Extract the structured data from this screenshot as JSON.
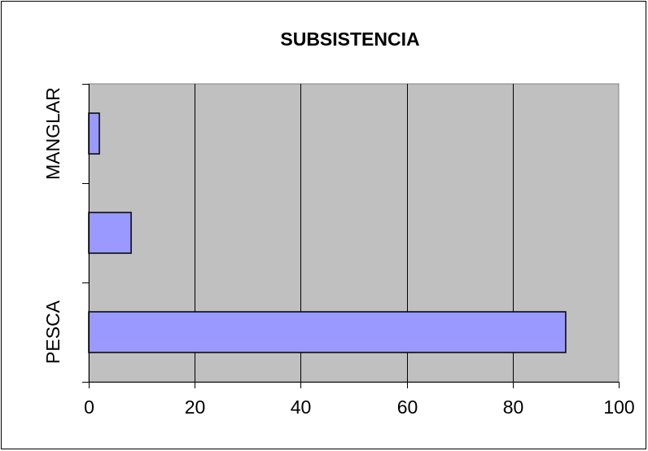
{
  "chart_data": {
    "type": "bar",
    "orientation": "horizontal",
    "title": "SUBSISTENCIA",
    "xlabel": "",
    "ylabel": "",
    "categories": [
      "PESCA",
      "",
      "MANGLAR"
    ],
    "values": [
      90,
      8,
      2
    ],
    "xlim": [
      0,
      100
    ],
    "xticks": [
      "0",
      "20",
      "40",
      "60",
      "80",
      "100"
    ],
    "grid": "vertical",
    "legend": "none",
    "colors": {
      "bar": "#9999ff",
      "plot_background": "#c0c0c0"
    }
  }
}
